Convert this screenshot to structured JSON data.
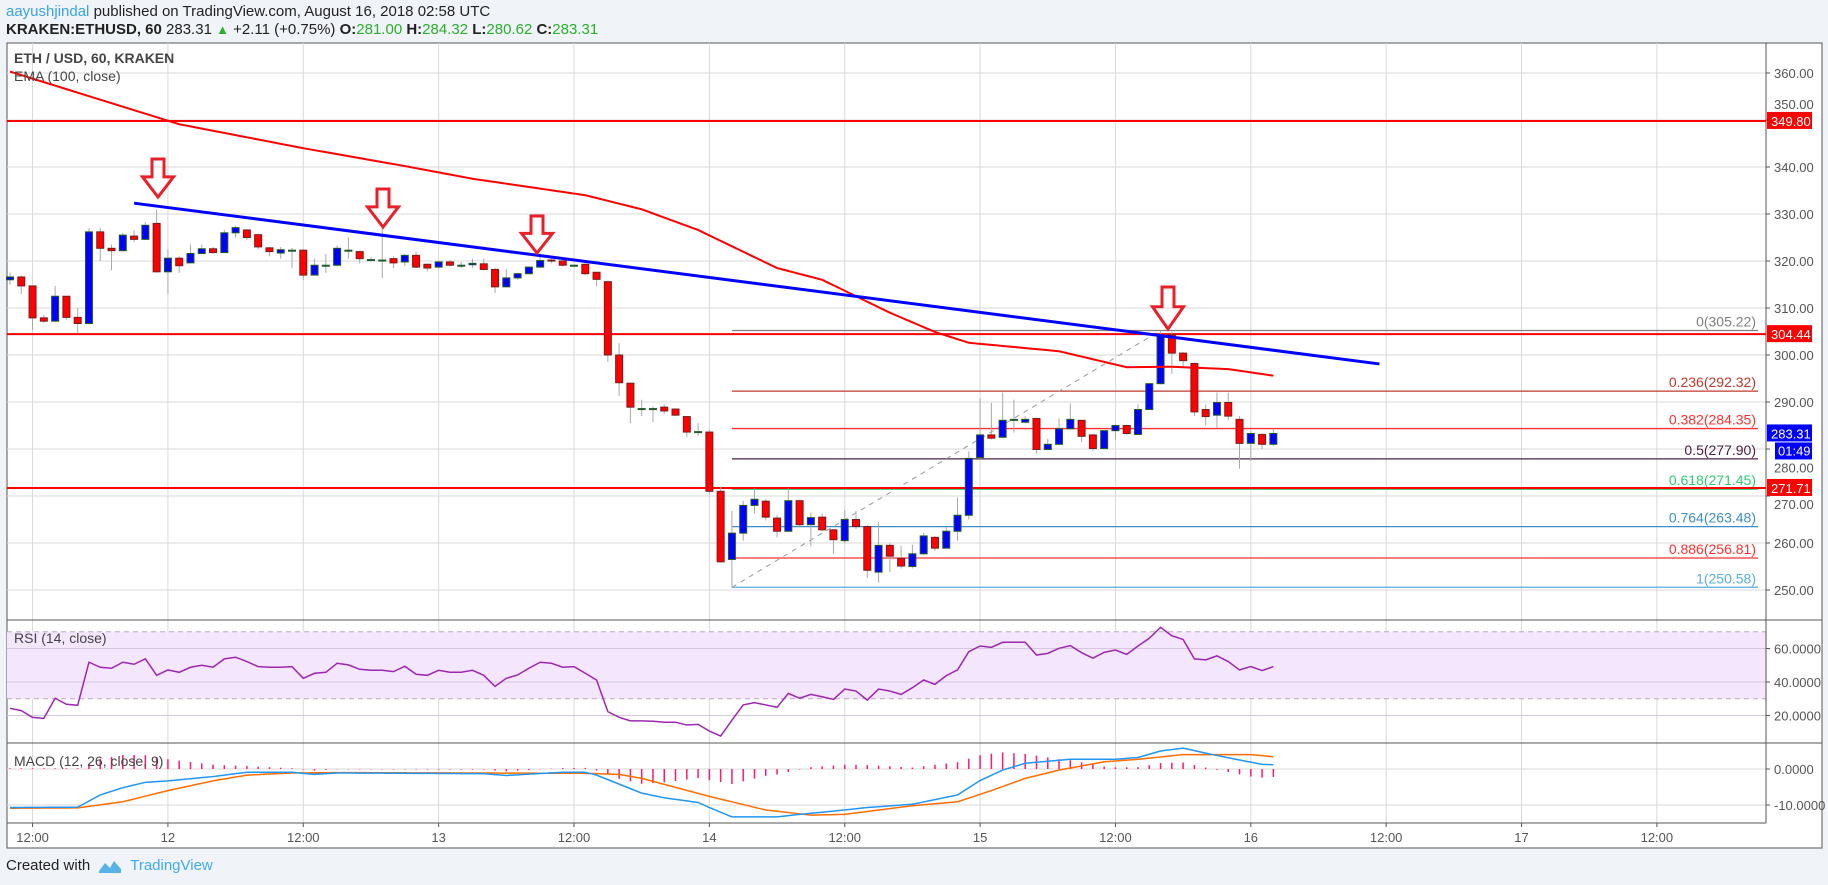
{
  "header": {
    "author": "aayushjindal",
    "published": "published on TradingView.com, August 16, 2018 02:58 UTC",
    "symbol": "KRAKEN:ETHUSD, 60",
    "last": "283.31",
    "change": "+2.11 (+0.75%)",
    "o_label": "O:",
    "o": "281.00",
    "h_label": "H:",
    "h": "284.32",
    "l_label": "L:",
    "l": "280.62",
    "c_label": "C:",
    "c": "283.31"
  },
  "footer": {
    "created_with": "Created with",
    "brand": "TradingView"
  },
  "colors": {
    "up": "#0000ff",
    "down": "#ff0000",
    "ema": "#ff0000",
    "trendline": "#0000ff",
    "rsi": "#9c27b0",
    "macd": "#2196f3",
    "signal": "#ff6d00",
    "hist": "#ff1a6a",
    "hline": "#ff0000"
  },
  "chart_data": {
    "type": "candlestick",
    "title": "ETH / USD, 60, KRAKEN",
    "indicator_label": "EMA (100, close)",
    "x_ticks": [
      "12:00",
      "12",
      "12:00",
      "13",
      "12:00",
      "14",
      "12:00",
      "15",
      "12:00",
      "16",
      "12:00",
      "17",
      "12:00"
    ],
    "y_ticks": [
      "250.00",
      "260.00",
      "270.00",
      "280.00",
      "290.00",
      "300.00",
      "310.00",
      "320.00",
      "330.00",
      "340.00",
      "350.00",
      "360.00"
    ],
    "ylim": [
      247,
      369
    ],
    "first_candle": "Aug 11 10:00",
    "interval": "60",
    "candles_ohlc": [
      [
        316.0,
        317.5,
        315.0,
        316.6
      ],
      [
        316.6,
        316.9,
        313.0,
        314.7
      ],
      [
        314.7,
        314.7,
        305.3,
        307.9
      ],
      [
        307.9,
        308.5,
        306.8,
        307.2
      ],
      [
        307.2,
        314.7,
        307.0,
        312.5
      ],
      [
        312.5,
        312.5,
        307.5,
        308.0
      ],
      [
        308.0,
        310.0,
        304.7,
        306.7
      ],
      [
        306.7,
        327.0,
        306.5,
        326.2
      ],
      [
        326.2,
        327.0,
        320.0,
        322.7
      ],
      [
        322.7,
        323.5,
        318.0,
        322.2
      ],
      [
        322.2,
        326.0,
        322.0,
        325.5
      ],
      [
        325.3,
        326.5,
        324.0,
        324.6
      ],
      [
        324.6,
        328.3,
        324.5,
        327.6
      ],
      [
        328.0,
        331.0,
        317.5,
        317.7
      ],
      [
        317.7,
        322.5,
        313.0,
        320.6
      ],
      [
        320.6,
        321.0,
        317.5,
        319.0
      ],
      [
        319.6,
        323.5,
        319.5,
        321.6
      ],
      [
        321.6,
        323.5,
        321.5,
        322.6
      ],
      [
        322.6,
        323.0,
        321.5,
        321.8
      ],
      [
        321.8,
        326.6,
        321.7,
        326.0
      ],
      [
        326.0,
        327.5,
        325.0,
        327.1
      ],
      [
        326.6,
        326.8,
        324.5,
        325.0
      ],
      [
        325.6,
        325.8,
        322.5,
        323.0
      ],
      [
        322.8,
        323.0,
        321.0,
        322.0
      ],
      [
        321.7,
        323.0,
        320.5,
        322.4
      ],
      [
        322.3,
        322.8,
        318.5,
        322.3
      ],
      [
        322.3,
        322.5,
        316.0,
        317.0
      ],
      [
        317.0,
        320.5,
        317.0,
        319.1
      ],
      [
        319.1,
        321.5,
        317.5,
        319.1
      ],
      [
        319.1,
        323.3,
        319.0,
        322.7
      ],
      [
        322.3,
        325.0,
        320.5,
        322.3
      ],
      [
        322.0,
        322.2,
        319.5,
        320.5
      ],
      [
        320.3,
        320.8,
        320.0,
        320.3
      ],
      [
        320.2,
        327.2,
        316.4,
        320.2
      ],
      [
        320.5,
        321.0,
        318.5,
        319.6
      ],
      [
        319.8,
        321.5,
        319.0,
        321.2
      ],
      [
        321.2,
        322.0,
        318.5,
        318.7
      ],
      [
        319.3,
        319.5,
        317.8,
        318.5
      ],
      [
        318.7,
        320.0,
        318.4,
        319.8
      ],
      [
        319.8,
        320.2,
        318.8,
        319.1
      ],
      [
        319.1,
        319.8,
        318.5,
        319.1
      ],
      [
        319.2,
        320.5,
        318.6,
        319.5
      ],
      [
        319.4,
        320.5,
        318.0,
        318.2
      ],
      [
        318.2,
        318.5,
        313.2,
        314.5
      ],
      [
        314.5,
        318.3,
        314.4,
        316.4
      ],
      [
        316.4,
        317.5,
        316.0,
        317.3
      ],
      [
        317.3,
        318.8,
        317.2,
        318.7
      ],
      [
        318.7,
        321.6,
        318.5,
        320.1
      ],
      [
        320.2,
        320.5,
        319.5,
        320.0
      ],
      [
        320.0,
        320.3,
        318.8,
        319.1
      ],
      [
        319.1,
        319.3,
        318.9,
        319.1
      ],
      [
        319.3,
        319.5,
        317.0,
        317.3
      ],
      [
        317.6,
        317.7,
        314.6,
        316.1
      ],
      [
        315.6,
        315.8,
        298.5,
        300.0
      ],
      [
        300.0,
        302.5,
        291.3,
        294.1
      ],
      [
        294.0,
        294.0,
        285.5,
        288.9
      ],
      [
        288.6,
        290.5,
        287.0,
        288.6
      ],
      [
        288.6,
        289.0,
        285.7,
        288.6
      ],
      [
        288.9,
        289.5,
        287.5,
        288.1
      ],
      [
        288.5,
        288.6,
        287.0,
        287.2
      ],
      [
        286.9,
        287.0,
        282.6,
        283.6
      ],
      [
        283.7,
        285.5,
        282.8,
        283.7
      ],
      [
        283.6,
        284.0,
        270.5,
        271.0
      ],
      [
        271.0,
        272.0,
        255.8,
        256.0
      ],
      [
        256.5,
        266.8,
        250.6,
        262.1
      ],
      [
        262.1,
        269.0,
        260.5,
        268.0
      ],
      [
        268.0,
        271.7,
        266.3,
        269.3
      ],
      [
        268.9,
        269.3,
        264.8,
        265.5
      ],
      [
        265.3,
        265.9,
        261.2,
        262.5
      ],
      [
        262.5,
        271.7,
        262.4,
        269.0
      ],
      [
        269.0,
        269.2,
        263.5,
        263.9
      ],
      [
        263.9,
        266.5,
        259.3,
        265.4
      ],
      [
        265.5,
        266.3,
        262.5,
        262.8
      ],
      [
        262.8,
        263.0,
        257.6,
        260.7
      ],
      [
        260.5,
        267.0,
        260.0,
        265.0
      ],
      [
        265.0,
        266.8,
        263.0,
        263.5
      ],
      [
        263.5,
        263.8,
        252.6,
        254.2
      ],
      [
        253.8,
        264.5,
        251.6,
        259.5
      ],
      [
        259.5,
        259.9,
        253.8,
        257.2
      ],
      [
        256.7,
        259.4,
        254.6,
        255.1
      ],
      [
        255.0,
        259.6,
        254.6,
        257.7
      ],
      [
        257.7,
        262.2,
        257.5,
        261.5
      ],
      [
        261.2,
        261.5,
        258.3,
        258.9
      ],
      [
        258.9,
        263.4,
        258.8,
        262.5
      ],
      [
        262.5,
        269.7,
        260.5,
        265.9
      ],
      [
        265.9,
        279.5,
        265.0,
        278.0
      ],
      [
        278.2,
        290.8,
        277.9,
        283.0
      ],
      [
        283.0,
        289.8,
        282.0,
        282.3
      ],
      [
        282.5,
        292.0,
        282.3,
        286.1
      ],
      [
        286.3,
        290.5,
        283.5,
        286.3
      ],
      [
        285.7,
        287.0,
        285.5,
        286.3
      ],
      [
        286.5,
        286.6,
        279.0,
        279.9
      ],
      [
        279.9,
        282.2,
        279.8,
        281.0
      ],
      [
        281.0,
        286.5,
        280.8,
        284.3
      ],
      [
        284.3,
        289.7,
        284.2,
        286.3
      ],
      [
        286.1,
        286.2,
        281.5,
        282.7
      ],
      [
        283.0,
        283.2,
        279.5,
        280.1
      ],
      [
        280.1,
        283.9,
        280.0,
        283.9
      ],
      [
        283.9,
        285.3,
        282.0,
        285.0
      ],
      [
        285.0,
        285.2,
        283.0,
        283.3
      ],
      [
        283.1,
        289.5,
        283.0,
        288.4
      ],
      [
        288.4,
        294.0,
        288.3,
        293.9
      ],
      [
        293.9,
        305.2,
        293.8,
        304.3
      ],
      [
        304.3,
        305.0,
        296.0,
        300.4
      ],
      [
        300.4,
        300.6,
        297.5,
        298.8
      ],
      [
        298.2,
        298.4,
        287.0,
        287.9
      ],
      [
        288.4,
        289.5,
        285.0,
        286.9
      ],
      [
        287.2,
        292.0,
        284.5,
        289.9
      ],
      [
        289.9,
        292.0,
        286.2,
        287.0
      ],
      [
        286.3,
        287.0,
        275.8,
        281.2
      ],
      [
        281.2,
        283.8,
        277.5,
        283.3
      ],
      [
        283.1,
        283.3,
        280.0,
        281.0
      ],
      [
        281.0,
        284.32,
        280.62,
        283.31
      ]
    ],
    "ema100_points": [
      [
        1,
        360.3
      ],
      [
        16,
        349.1
      ],
      [
        27,
        344.0
      ],
      [
        36,
        340.2
      ],
      [
        42,
        337.5
      ],
      [
        52,
        334.0
      ],
      [
        57,
        331.0
      ],
      [
        62,
        326.6
      ],
      [
        69,
        318.5
      ],
      [
        73,
        316.0
      ],
      [
        79,
        309.0
      ],
      [
        83,
        304.9
      ],
      [
        86,
        302.6
      ],
      [
        94,
        300.8
      ],
      [
        100,
        297.4
      ],
      [
        104,
        297.5
      ],
      [
        109,
        297.0
      ],
      [
        113,
        295.6
      ]
    ],
    "trendline": {
      "from": [
        12,
        332.3
      ],
      "to": [
        122.4,
        298.1
      ]
    },
    "horizontal_lines": [
      {
        "price": 349.8,
        "label": "349.80"
      },
      {
        "price": 304.44,
        "label": "304.44"
      },
      {
        "price": 271.71,
        "label": "271.71"
      }
    ],
    "last_price_label": "283.31",
    "countdown_label": "01:49",
    "fib": {
      "from": [
        65,
        250.58
      ],
      "to": [
        103,
        305.22
      ],
      "levels": [
        {
          "ratio": "0",
          "price": 305.22,
          "label": "0(305.22)",
          "color": "#808080"
        },
        {
          "ratio": "0.236",
          "price": 292.32,
          "label": "0.236(292.32)",
          "color": "#c0392b"
        },
        {
          "ratio": "0.382",
          "price": 284.35,
          "label": "0.382(284.35)",
          "color": "#ff3030"
        },
        {
          "ratio": "0.5",
          "price": 277.9,
          "label": "0.5(277.90)",
          "color": "#4a2040"
        },
        {
          "ratio": "0.618",
          "price": 271.45,
          "label": "0.618(271.45)",
          "color": "#2ecc71"
        },
        {
          "ratio": "0.764",
          "price": 263.48,
          "label": "0.764(263.48)",
          "color": "#3a8fc8"
        },
        {
          "ratio": "0.886",
          "price": 256.81,
          "label": "0.886(256.81)",
          "color": "#ff3030"
        },
        {
          "ratio": "1",
          "price": 250.58,
          "label": "1(250.58)",
          "color": "#5aaee0"
        }
      ]
    },
    "rsi": {
      "label": "RSI (14, close)",
      "y_ticks": [
        "20.0000",
        "40.0000",
        "60.0000"
      ],
      "band": [
        30,
        70
      ],
      "values": [
        24.3,
        22.9,
        18.9,
        18.3,
        30.3,
        26.7,
        26.1,
        51.8,
        48.8,
        48.2,
        51.8,
        50.6,
        53.8,
        44.0,
        47.2,
        45.8,
        48.8,
        50.0,
        48.8,
        53.8,
        54.8,
        52.2,
        49.2,
        48.8,
        48.8,
        49.2,
        42.2,
        45.2,
        45.8,
        51.2,
        50.2,
        47.6,
        47.0,
        47.0,
        46.2,
        49.4,
        44.6,
        44.0,
        47.0,
        45.8,
        45.8,
        47.0,
        44.0,
        37.4,
        42.2,
        44.2,
        48.2,
        51.8,
        51.2,
        48.8,
        49.2,
        45.2,
        41.2,
        22.3,
        18.9,
        16.8,
        16.8,
        16.6,
        16.0,
        16.0,
        14.3,
        14.7,
        10.7,
        7.7,
        17.2,
        26.3,
        27.7,
        26.3,
        24.9,
        33.2,
        30.3,
        32.6,
        31.2,
        29.6,
        35.8,
        34.6,
        29.2,
        35.8,
        34.6,
        32.6,
        36.6,
        41.2,
        38.6,
        43.8,
        47.2,
        58.1,
        61.5,
        60.7,
        63.7,
        63.7,
        63.7,
        56.1,
        57.1,
        60.1,
        61.7,
        57.5,
        54.2,
        57.7,
        59.1,
        56.5,
        61.5,
        66.1,
        72.6,
        67.6,
        65.4,
        53.8,
        53.2,
        55.6,
        52.2,
        47.2,
        49.2,
        46.8,
        49.2
      ]
    },
    "macd": {
      "label": "MACD (12, 26, close, 9)",
      "y_ticks": [
        "0.0000",
        "-10.0000"
      ],
      "macd_points": [
        [
          1,
          -10.7
        ],
        [
          7,
          -10.6
        ],
        [
          9,
          -7.2
        ],
        [
          11,
          -5.2
        ],
        [
          13,
          -3.7
        ],
        [
          15,
          -3.3
        ],
        [
          19,
          -2.1
        ],
        [
          22,
          -0.9
        ],
        [
          26,
          -0.9
        ],
        [
          28,
          -1.5
        ],
        [
          30,
          -1.1
        ],
        [
          43,
          -1.3
        ],
        [
          45,
          -1.8
        ],
        [
          50,
          -0.9
        ],
        [
          52,
          -0.9
        ],
        [
          53,
          -1.7
        ],
        [
          57,
          -6.7
        ],
        [
          59,
          -8.0
        ],
        [
          62,
          -9.3
        ],
        [
          63,
          -10.7
        ],
        [
          65,
          -13.3
        ],
        [
          69,
          -13.3
        ],
        [
          71,
          -12.6
        ],
        [
          74,
          -11.7
        ],
        [
          77,
          -10.7
        ],
        [
          81,
          -9.8
        ],
        [
          85,
          -7.2
        ],
        [
          87,
          -3.2
        ],
        [
          89,
          -0.3
        ],
        [
          91,
          1.6
        ],
        [
          95,
          2.7
        ],
        [
          99,
          2.7
        ],
        [
          101,
          3.2
        ],
        [
          103,
          5.0
        ],
        [
          105,
          5.8
        ],
        [
          107,
          4.4
        ],
        [
          110,
          2.5
        ],
        [
          112,
          1.3
        ],
        [
          113,
          1.2
        ]
      ],
      "signal_points": [
        [
          1,
          -10.9
        ],
        [
          7,
          -10.8
        ],
        [
          11,
          -9.1
        ],
        [
          15,
          -6.0
        ],
        [
          19,
          -3.3
        ],
        [
          22,
          -1.7
        ],
        [
          26,
          -1.1
        ],
        [
          30,
          -1.0
        ],
        [
          52,
          -1.2
        ],
        [
          55,
          -1.5
        ],
        [
          57,
          -2.6
        ],
        [
          63,
          -7.6
        ],
        [
          68,
          -11.4
        ],
        [
          72,
          -12.8
        ],
        [
          75,
          -12.6
        ],
        [
          81,
          -10.2
        ],
        [
          85,
          -9.1
        ],
        [
          88,
          -6.0
        ],
        [
          91,
          -2.6
        ],
        [
          94,
          -0.3
        ],
        [
          98,
          2.0
        ],
        [
          101,
          2.7
        ],
        [
          105,
          4.0
        ],
        [
          111,
          4.0
        ],
        [
          113,
          3.4
        ]
      ]
    }
  }
}
